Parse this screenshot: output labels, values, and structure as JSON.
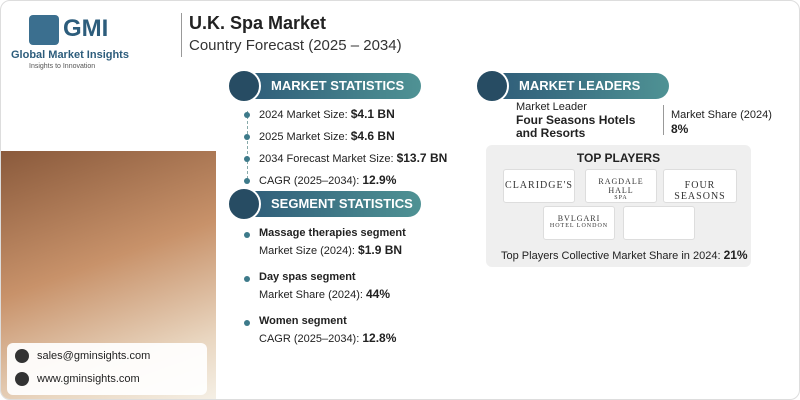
{
  "brand": {
    "logo": "GMI",
    "name": "Global Market Insights",
    "tagline": "Insights to Innovation"
  },
  "header": {
    "title": "U.K. Spa Market",
    "subtitle": "Country Forecast (2025 – 2034)"
  },
  "market_statistics": {
    "heading": "MARKET STATISTICS",
    "items": [
      {
        "label": "2024 Market Size:",
        "value": "$4.1 BN"
      },
      {
        "label": "2025 Market Size:",
        "value": "$4.6 BN"
      },
      {
        "label": "2034 Forecast Market Size:",
        "value": "$13.7 BN"
      },
      {
        "label": "CAGR (2025–2034):",
        "value": "12.9%"
      }
    ]
  },
  "segment_statistics": {
    "heading": "SEGMENT STATISTICS",
    "items": [
      {
        "segment": "Massage therapies segment",
        "label": "Market Size (2024):",
        "value": "$1.9 BN"
      },
      {
        "segment": "Day spas segment",
        "label": "Market Share (2024):",
        "value": "44%"
      },
      {
        "segment": "Women segment",
        "label": "CAGR (2025–2034):",
        "value": "12.8%"
      }
    ]
  },
  "market_leaders": {
    "heading": "MARKET LEADERS",
    "leader_label": "Market Leader",
    "leader_name": "Four Seasons Hotels and Resorts",
    "share_label": "Market Share (2024)",
    "share_value": "8%"
  },
  "top_players": {
    "heading": "TOP PLAYERS",
    "players": [
      {
        "name": "CLARIDGE'S"
      },
      {
        "name": "RAGDALE HALL",
        "sub": "SPA"
      },
      {
        "name": "FOUR SEASONS"
      },
      {
        "name": "BVLGARI",
        "sub": "HOTEL LONDON"
      }
    ],
    "collective_label": "Top Players Collective Market Share in 2024:",
    "collective_value": "21%"
  },
  "contact": {
    "email": "sales@gminsights.com",
    "website": "www.gminsights.com"
  }
}
